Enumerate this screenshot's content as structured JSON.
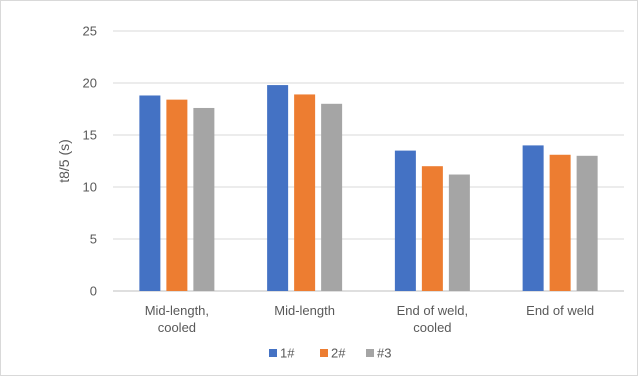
{
  "chart_data": {
    "type": "bar",
    "title": "",
    "xlabel": "",
    "ylabel": "t8/5 (s)",
    "ylim": [
      0,
      25
    ],
    "yticks": [
      0,
      5,
      10,
      15,
      20,
      25
    ],
    "grid": true,
    "legend_position": "bottom",
    "categories": [
      [
        "Mid-length,",
        "cooled"
      ],
      [
        "Mid-length"
      ],
      [
        "End of weld,",
        "cooled"
      ],
      [
        "End of weld"
      ]
    ],
    "series": [
      {
        "name": "1#",
        "color": "#4472c4",
        "values": [
          18.8,
          19.8,
          13.5,
          14.0
        ]
      },
      {
        "name": "2#",
        "color": "#ed7d31",
        "values": [
          18.4,
          18.9,
          12.0,
          13.1
        ]
      },
      {
        "name": "#3",
        "color": "#a5a5a5",
        "values": [
          17.6,
          18.0,
          11.2,
          13.0
        ]
      }
    ]
  }
}
